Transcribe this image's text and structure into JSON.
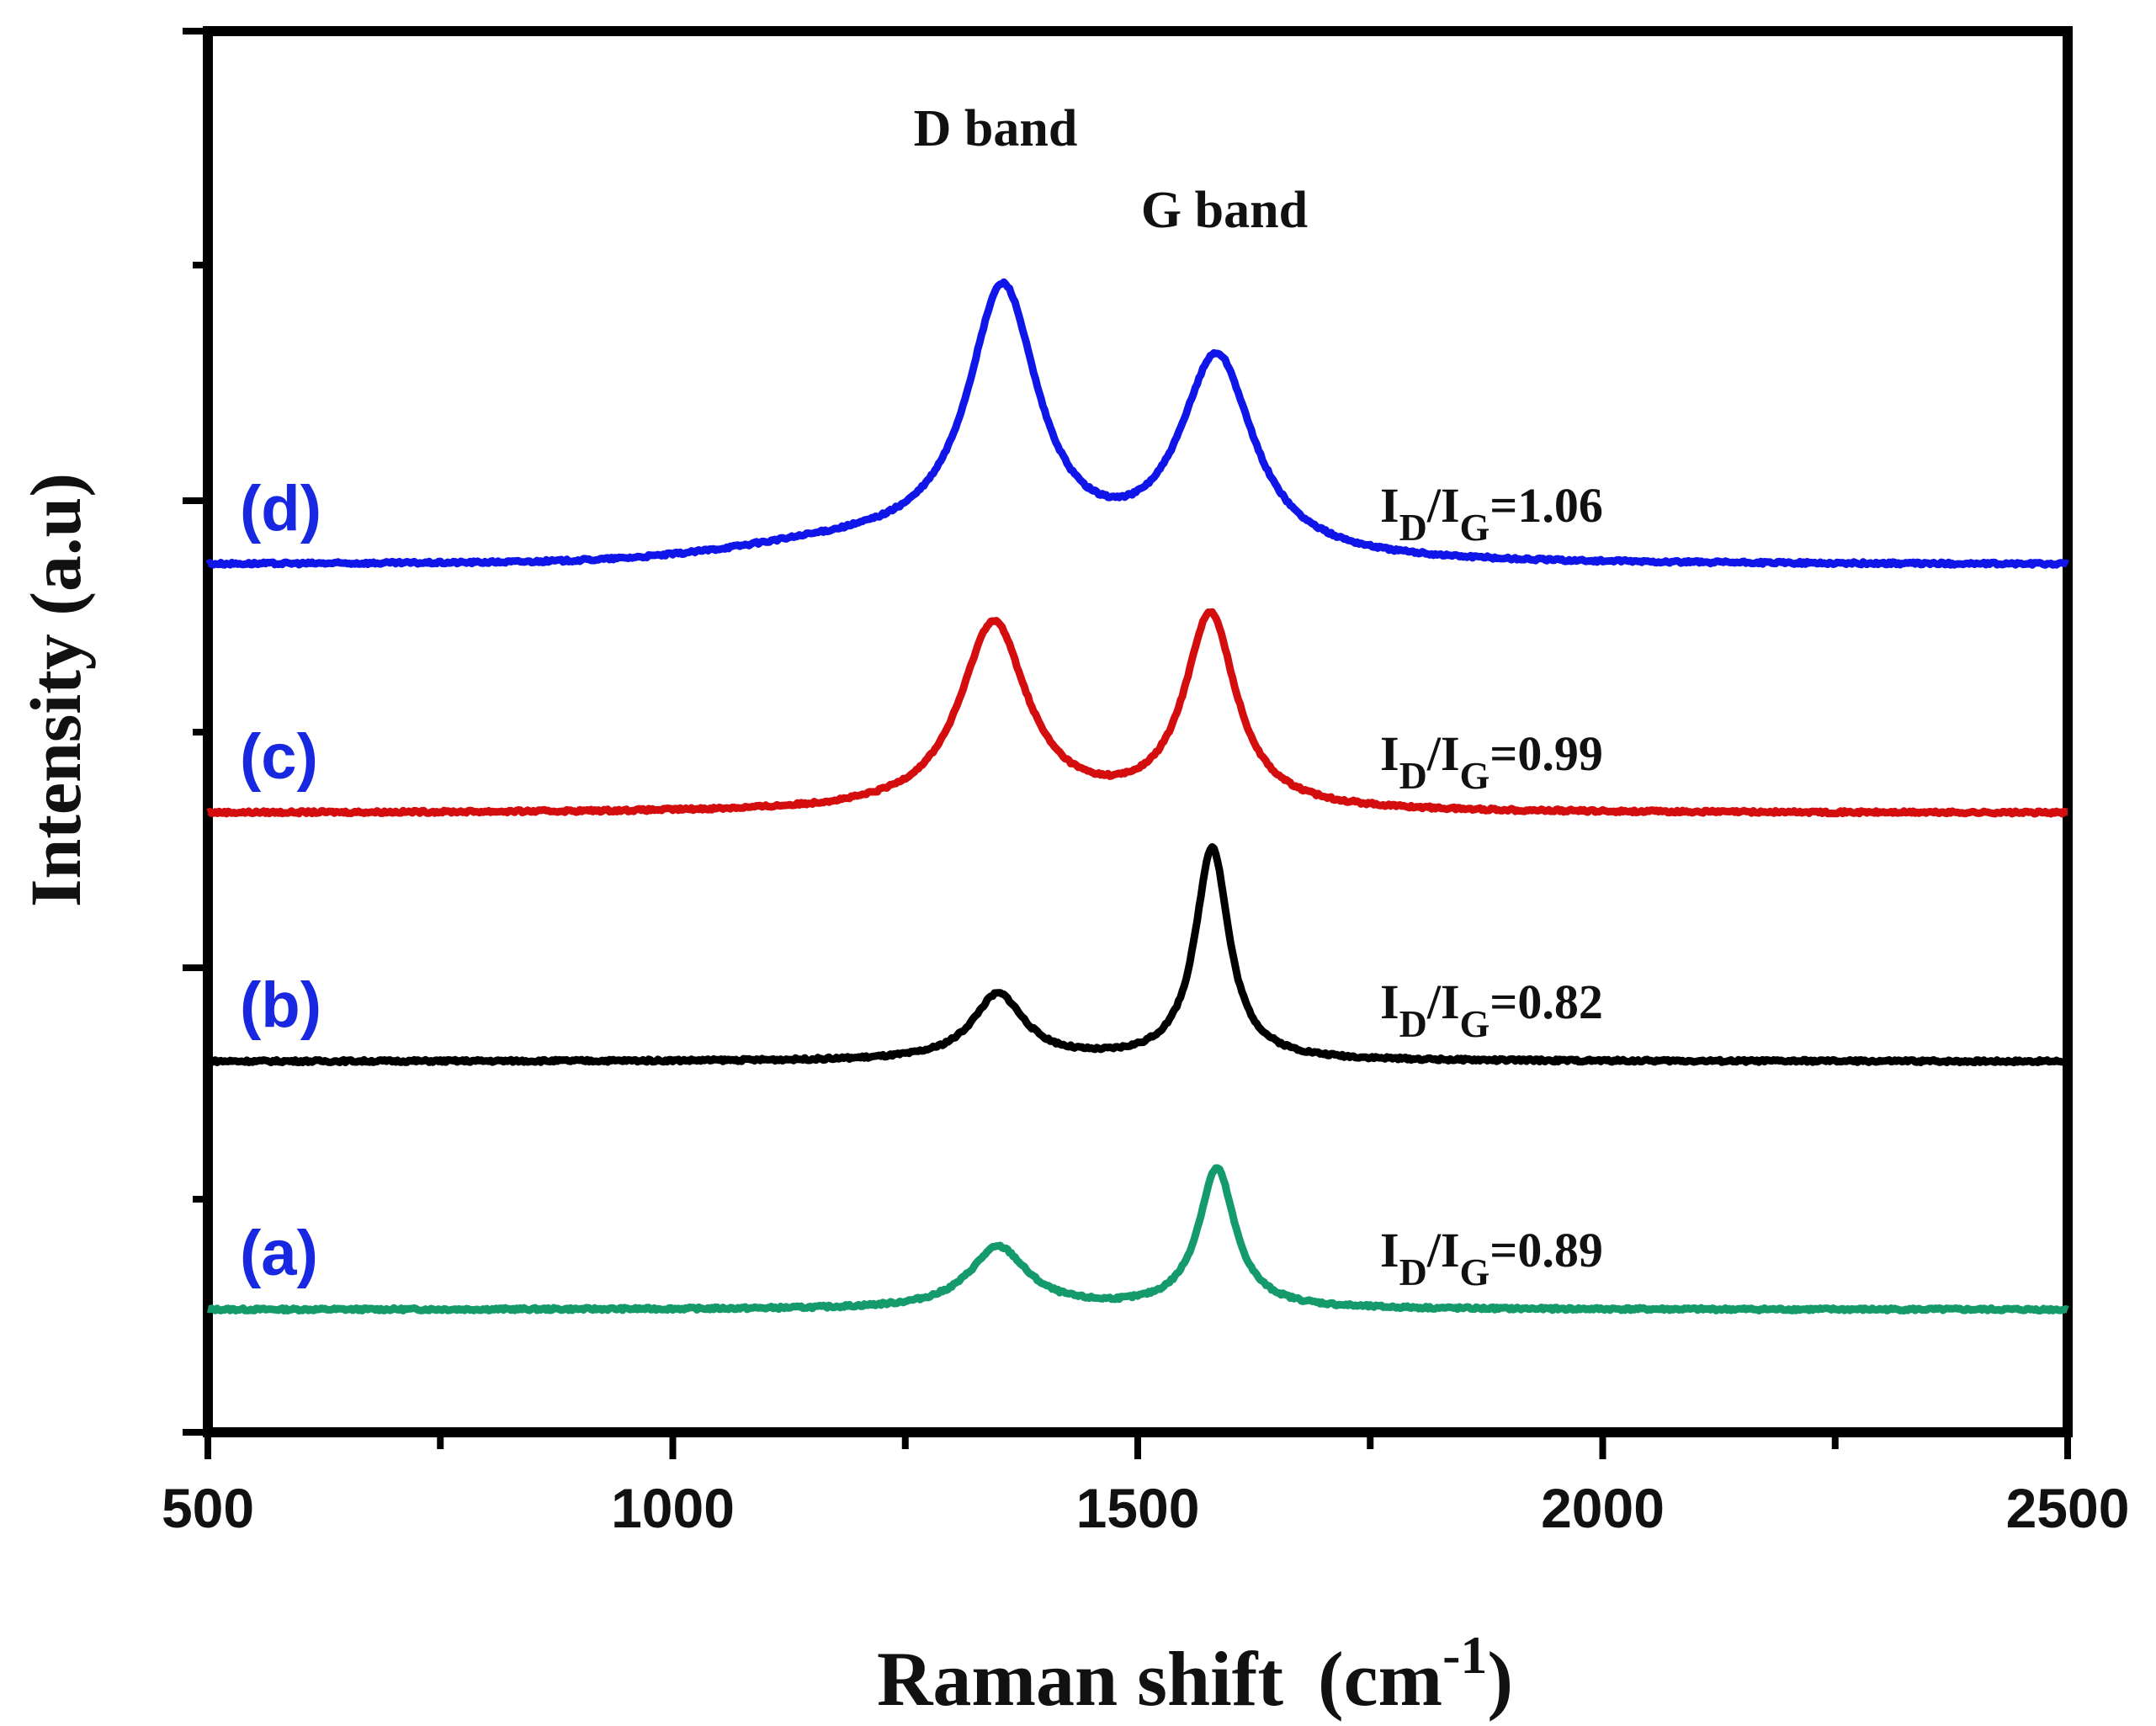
{
  "chart_data": {
    "type": "line",
    "title": "",
    "xlabel": "Raman shift",
    "xlabel_unit_base": "(cm",
    "xlabel_unit_exp": "-1",
    "xlabel_unit_close": ")",
    "ylabel": "Intensity (a.u)",
    "xlim": [
      500,
      2500
    ],
    "xticks": [
      500,
      1000,
      1500,
      2000,
      2500
    ],
    "ytick_labels_shown": false,
    "annotations": {
      "d_band": "D band",
      "g_band": "G band"
    },
    "series": [
      {
        "name": "(a)",
        "color": "#159a6b",
        "offset": 0,
        "baseline": 0.05,
        "d_center": 1350,
        "d_height": 0.42,
        "d_width": 38,
        "g_center": 1585,
        "g_height": 0.95,
        "g_width": 24,
        "ratio_symbol": "I",
        "ratio_sub_d": "D",
        "ratio_slash": "/",
        "ratio_sub_g": "G",
        "ratio_value": "=0.89"
      },
      {
        "name": "(b)",
        "color": "#000000",
        "offset": 1,
        "baseline": 0.05,
        "d_center": 1350,
        "d_height": 0.45,
        "d_width": 34,
        "g_center": 1580,
        "g_height": 1.45,
        "g_width": 22,
        "ratio_symbol": "I",
        "ratio_sub_d": "D",
        "ratio_slash": "/",
        "ratio_sub_g": "G",
        "ratio_value": "=0.82"
      },
      {
        "name": "(c)",
        "color": "#d40e0e",
        "offset": 2,
        "baseline": 0.05,
        "d_center": 1345,
        "d_height": 1.28,
        "d_width": 44,
        "g_center": 1578,
        "g_height": 1.32,
        "g_width": 34,
        "ratio_symbol": "I",
        "ratio_sub_d": "D",
        "ratio_slash": "/",
        "ratio_sub_g": "G",
        "ratio_value": "=0.99"
      },
      {
        "name": "(d)",
        "color": "#1015e8",
        "offset": 3,
        "baseline": 0.05,
        "d_center": 1355,
        "d_height": 1.8,
        "d_width": 46,
        "g_center": 1585,
        "g_height": 1.37,
        "g_width": 48,
        "ratio_symbol": "I",
        "ratio_sub_d": "D",
        "ratio_slash": "/",
        "ratio_sub_g": "G",
        "ratio_value": "=1.06"
      }
    ]
  }
}
